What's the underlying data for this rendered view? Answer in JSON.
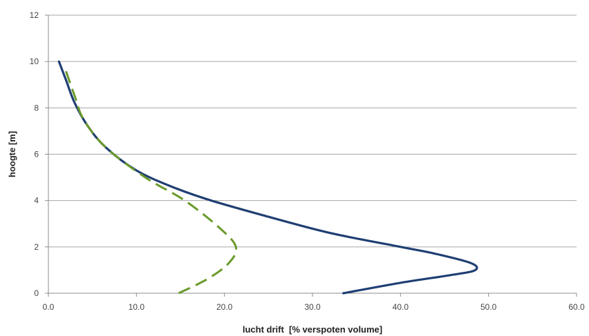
{
  "chart_data": {
    "type": "line",
    "title": "",
    "xlabel": "lucht drift  [% verspoten volume]",
    "ylabel": "hoogte [m]",
    "xlim": [
      0,
      60
    ],
    "ylim": [
      0,
      12
    ],
    "x_ticks": [
      "0.0",
      "10.0",
      "20.0",
      "30.0",
      "40.0",
      "50.0",
      "60.0"
    ],
    "y_ticks": [
      "0",
      "2",
      "4",
      "6",
      "8",
      "10",
      "12"
    ],
    "grid": "horizontal",
    "legend": "none",
    "series": [
      {
        "color": "#1f3f73",
        "style": "solid",
        "points": [
          {
            "x": 33.5,
            "y": 0.0
          },
          {
            "x": 40.0,
            "y": 0.45
          },
          {
            "x": 46.0,
            "y": 0.8
          },
          {
            "x": 48.5,
            "y": 1.0
          },
          {
            "x": 48.0,
            "y": 1.3
          },
          {
            "x": 44.0,
            "y": 1.7
          },
          {
            "x": 40.0,
            "y": 2.0
          },
          {
            "x": 32.0,
            "y": 2.6
          },
          {
            "x": 25.0,
            "y": 3.3
          },
          {
            "x": 18.5,
            "y": 4.0
          },
          {
            "x": 14.0,
            "y": 4.6
          },
          {
            "x": 10.0,
            "y": 5.3
          },
          {
            "x": 6.5,
            "y": 6.3
          },
          {
            "x": 4.5,
            "y": 7.2
          },
          {
            "x": 3.0,
            "y": 8.2
          },
          {
            "x": 2.0,
            "y": 9.2
          },
          {
            "x": 1.2,
            "y": 10.0
          }
        ]
      },
      {
        "color": "#6a9a2a",
        "style": "dashed",
        "points": [
          {
            "x": 14.8,
            "y": 0.0
          },
          {
            "x": 18.0,
            "y": 0.6
          },
          {
            "x": 20.5,
            "y": 1.3
          },
          {
            "x": 21.3,
            "y": 2.0
          },
          {
            "x": 19.5,
            "y": 2.8
          },
          {
            "x": 15.5,
            "y": 4.0
          },
          {
            "x": 11.0,
            "y": 5.0
          },
          {
            "x": 6.5,
            "y": 6.3
          },
          {
            "x": 4.0,
            "y": 7.5
          },
          {
            "x": 3.0,
            "y": 8.5
          },
          {
            "x": 1.8,
            "y": 9.8
          }
        ]
      }
    ]
  }
}
